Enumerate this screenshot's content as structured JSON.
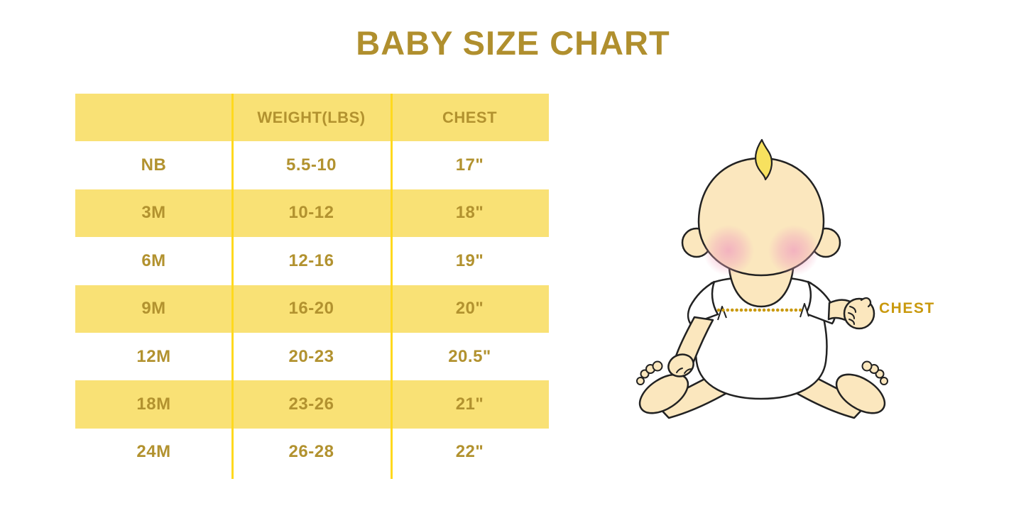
{
  "page": {
    "title": "BABY SIZE CHART",
    "background": "#FFFFFF"
  },
  "colors": {
    "title_gold": "#B08F2E",
    "table_text_gold": "#B2922F",
    "row_yellow": "#F9E175",
    "divider_yellow": "#FFD91E",
    "chest_label_gold": "#C9990E",
    "dotted_line_gold": "#C9990E",
    "baby_skin": "#FBE7BE",
    "baby_hair_yellow": "#F7E15F",
    "baby_blush_pink": "#F1A9BF",
    "baby_outline": "#222222",
    "onesie_white": "#FFFFFF"
  },
  "chart_data": {
    "type": "table",
    "title": "BABY SIZE CHART",
    "columns": [
      "",
      "WEIGHT(LBS)",
      "CHEST"
    ],
    "rows": [
      [
        "NB",
        "5.5-10",
        "17\""
      ],
      [
        "3M",
        "10-12",
        "18\""
      ],
      [
        "6M",
        "12-16",
        "19\""
      ],
      [
        "9M",
        "16-20",
        "20\""
      ],
      [
        "12M",
        "20-23",
        "20.5\""
      ],
      [
        "18M",
        "23-26",
        "21\""
      ],
      [
        "24M",
        "26-28",
        "22\""
      ]
    ],
    "striped_rows": "header and alternating rows (3M, 9M, 18M) filled light yellow",
    "annotation": "CHEST"
  },
  "illustration": {
    "chest_label": "CHEST",
    "description": "cartoon seated baby in white onesie with dotted measurement line across chest"
  }
}
